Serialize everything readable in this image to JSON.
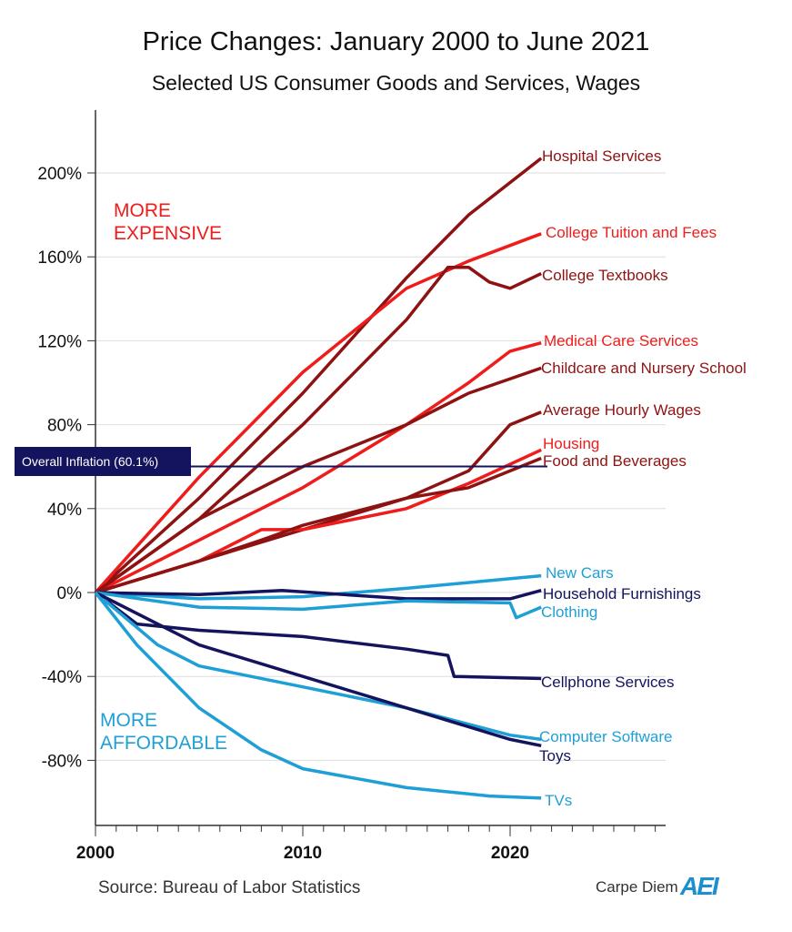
{
  "chart_data": {
    "type": "line",
    "title": "Price Changes:  January 2000 to June 2021",
    "subtitle": "Selected US Consumer Goods and Services, Wages",
    "xlim": [
      2000,
      2027.5
    ],
    "ylim": [
      -111,
      230
    ],
    "x_ticks": [
      "2000",
      "2010",
      "2020"
    ],
    "x_tick_values": [
      2000,
      2010,
      2020
    ],
    "y_ticks": [
      "200%",
      "160%",
      "120%",
      "80%",
      "40%",
      "0%",
      "-40%",
      "-80%"
    ],
    "y_tick_values": [
      200,
      160,
      120,
      80,
      40,
      0,
      -40,
      -80
    ],
    "grid": "horizontal",
    "annotations": {
      "more_expensive": [
        "MORE",
        "EXPENSIVE"
      ],
      "more_affordable": [
        "MORE",
        "AFFORDABLE"
      ],
      "inflation_label": "Overall Inflation (60.1%)",
      "inflation_value": 60.1
    },
    "colors": {
      "dark_red": "#8e1212",
      "red": "#ef1c1c",
      "navy": "#14145e",
      "light_blue": "#1e9fd6"
    },
    "series": [
      {
        "name": "Hospital Services",
        "color": "dark_red",
        "x": [
          2000,
          2005,
          2010,
          2015,
          2018,
          2021.5
        ],
        "y": [
          0,
          45,
          95,
          150,
          180,
          207
        ]
      },
      {
        "name": "College Tuition and Fees",
        "color": "red",
        "x": [
          2000,
          2005,
          2010,
          2015,
          2018,
          2021.5
        ],
        "y": [
          0,
          55,
          105,
          145,
          158,
          171
        ]
      },
      {
        "name": "College Textbooks",
        "color": "dark_red",
        "x": [
          2000,
          2005,
          2010,
          2015,
          2017,
          2018,
          2019,
          2020,
          2021.5
        ],
        "y": [
          0,
          35,
          80,
          130,
          155,
          155,
          148,
          145,
          152
        ]
      },
      {
        "name": "Medical Care Services",
        "color": "red",
        "x": [
          2000,
          2005,
          2010,
          2015,
          2018,
          2020,
          2021.5
        ],
        "y": [
          0,
          25,
          50,
          80,
          100,
          115,
          119
        ]
      },
      {
        "name": "Childcare and Nursery School",
        "color": "dark_red",
        "x": [
          2000,
          2005,
          2010,
          2015,
          2018,
          2021.5
        ],
        "y": [
          0,
          35,
          60,
          80,
          95,
          107
        ]
      },
      {
        "name": "Average Hourly Wages",
        "color": "dark_red",
        "x": [
          2000,
          2005,
          2010,
          2015,
          2018,
          2020,
          2021.5
        ],
        "y": [
          0,
          15,
          30,
          45,
          58,
          80,
          86
        ]
      },
      {
        "name": "Housing",
        "color": "red",
        "x": [
          2000,
          2005,
          2008,
          2010,
          2015,
          2018,
          2021.5
        ],
        "y": [
          0,
          15,
          30,
          30,
          40,
          52,
          68
        ]
      },
      {
        "name": "Food and Beverages",
        "color": "dark_red",
        "x": [
          2000,
          2005,
          2008,
          2010,
          2015,
          2018,
          2021.5
        ],
        "y": [
          0,
          15,
          25,
          32,
          45,
          50,
          64
        ]
      },
      {
        "name": "New Cars",
        "color": "light_blue",
        "x": [
          2000,
          2005,
          2010,
          2015,
          2021.5
        ],
        "y": [
          0,
          -3,
          -2,
          2,
          8
        ]
      },
      {
        "name": "Household Furnishings",
        "color": "navy",
        "x": [
          2000,
          2005,
          2009,
          2015,
          2020,
          2021.5
        ],
        "y": [
          0,
          -1,
          1,
          -3,
          -3,
          1
        ]
      },
      {
        "name": "Clothing",
        "color": "light_blue",
        "x": [
          2000,
          2005,
          2010,
          2015,
          2020,
          2020.3,
          2021.5
        ],
        "y": [
          0,
          -7,
          -8,
          -4,
          -5,
          -12,
          -7
        ]
      },
      {
        "name": "Cellphone Services",
        "color": "navy",
        "x": [
          2000,
          2002,
          2005,
          2010,
          2015,
          2017,
          2017.3,
          2021.5
        ],
        "y": [
          0,
          -15,
          -18,
          -21,
          -27,
          -30,
          -40,
          -41
        ]
      },
      {
        "name": "Computer Software",
        "color": "light_blue",
        "x": [
          2000,
          2003,
          2005,
          2010,
          2015,
          2020,
          2021.5
        ],
        "y": [
          0,
          -25,
          -35,
          -45,
          -55,
          -68,
          -70
        ]
      },
      {
        "name": "Toys",
        "color": "navy",
        "x": [
          2000,
          2003,
          2005,
          2010,
          2015,
          2020,
          2021.5
        ],
        "y": [
          0,
          -15,
          -25,
          -40,
          -55,
          -70,
          -73
        ]
      },
      {
        "name": "TVs",
        "color": "light_blue",
        "x": [
          2000,
          2002,
          2005,
          2008,
          2010,
          2015,
          2019,
          2021.5
        ],
        "y": [
          0,
          -25,
          -55,
          -75,
          -84,
          -93,
          -97,
          -98
        ]
      }
    ],
    "label_colors": [
      "dark_red",
      "red",
      "dark_red",
      "red",
      "dark_red",
      "dark_red",
      "red",
      "dark_red",
      "light_blue",
      "navy",
      "light_blue",
      "navy",
      "light_blue",
      "navy",
      "light_blue"
    ]
  },
  "footer": {
    "source": "Source: Bureau of Labor Statistics",
    "brand": "Carpe Diem",
    "logo": "AEI"
  }
}
